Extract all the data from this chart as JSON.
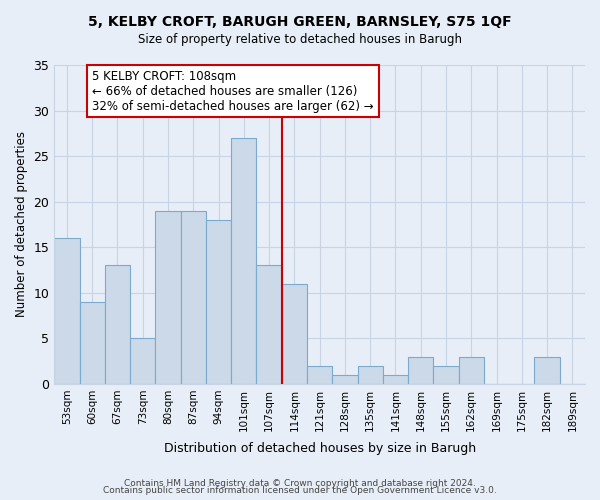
{
  "title_line1": "5, KELBY CROFT, BARUGH GREEN, BARNSLEY, S75 1QF",
  "title_line2": "Size of property relative to detached houses in Barugh",
  "xlabel": "Distribution of detached houses by size in Barugh",
  "ylabel": "Number of detached properties",
  "categories": [
    "53sqm",
    "60sqm",
    "67sqm",
    "73sqm",
    "80sqm",
    "87sqm",
    "94sqm",
    "101sqm",
    "107sqm",
    "114sqm",
    "121sqm",
    "128sqm",
    "135sqm",
    "141sqm",
    "148sqm",
    "155sqm",
    "162sqm",
    "169sqm",
    "175sqm",
    "182sqm",
    "189sqm"
  ],
  "values": [
    16,
    9,
    13,
    5,
    19,
    19,
    18,
    27,
    13,
    11,
    2,
    1,
    2,
    1,
    3,
    2,
    3,
    0,
    0,
    3,
    0
  ],
  "bar_color": "#ccd9e8",
  "bar_edge_color": "#7aaace",
  "reference_line_x": 8.5,
  "reference_line_color": "#cc0000",
  "annotation_box_text": "5 KELBY CROFT: 108sqm\n← 66% of detached houses are smaller (126)\n32% of semi-detached houses are larger (62) →",
  "annotation_box_edge_color": "#cc0000",
  "annotation_box_face_color": "#ffffff",
  "ylim": [
    0,
    35
  ],
  "yticks": [
    0,
    5,
    10,
    15,
    20,
    25,
    30,
    35
  ],
  "grid_color": "#c8d4e4",
  "footer_line1": "Contains HM Land Registry data © Crown copyright and database right 2024.",
  "footer_line2": "Contains public sector information licensed under the Open Government Licence v3.0.",
  "background_color": "#e8eef8",
  "plot_bg_color": "#e8eef8"
}
